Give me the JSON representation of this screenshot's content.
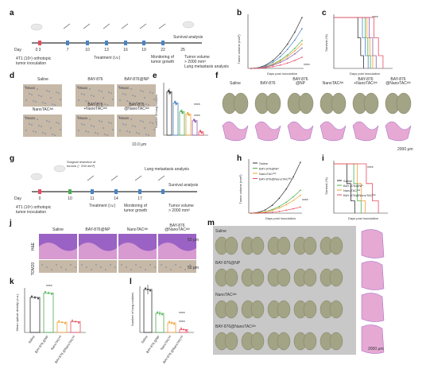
{
  "panels": {
    "a": {
      "label": "a",
      "day_label": "Day",
      "days": [
        "0",
        "3",
        "7",
        "10",
        "13",
        "16",
        "19",
        "22",
        "25"
      ],
      "inoculation": "4T1 (10⁵) orthotopic\ntumor inoculation",
      "treatment": "Treatment (i.v.)",
      "monitoring": "Monitoring of\ntumor growth",
      "survival": "Survival analysis",
      "tumor_volume": "Tumor volume\n> 2000 mm³",
      "metastasis": "Lung metastasis analysis"
    },
    "b": {
      "label": "b",
      "ylabel": "Tumor volume (mm³)",
      "xlabel": "Days post inoculation",
      "significance": "****"
    },
    "c": {
      "label": "c",
      "ylabel": "Survival (%)",
      "xlabel": "Days post inoculation",
      "significance": "****"
    },
    "d": {
      "label": "d",
      "titles": [
        "Saline",
        "BAY-876",
        "BAY-876@NP",
        "NanoTACᴬˡᵇ",
        "BAY-876\n+NanoTACᴬˡᵇ",
        "BAY-876\n@NanoTACᴬˡᵇ"
      ],
      "stain": "TOM20",
      "scale": "10.0 μm"
    },
    "e": {
      "label": "e",
      "ylabel": "Number of lung nodules",
      "significance": [
        "****",
        "****"
      ]
    },
    "f": {
      "label": "f",
      "titles": [
        "Saline",
        "BAY-876",
        "BAY-876\n@NP",
        "NanoTACᴬˡᵇ",
        "BAY-876\n+NanoTACᴬˡᵇ",
        "BAY-876\n@NanoTACᴬˡᵇ"
      ],
      "scale": "2000 μm"
    },
    "g": {
      "label": "g",
      "day_label": "Day",
      "days": [
        "0",
        "10",
        "11",
        "14",
        "17"
      ],
      "surgical": "Surgical resection of\ntumors (~ 200 mm³)",
      "inoculation": "4T1 (10⁵) orthotopic\ntumor inoculation",
      "treatment": "Treatment (i.v.)",
      "monitoring": "Monitoring of\ntumor growth",
      "survival": "Survival analysis",
      "tumor_volume": "Tumor volume\n> 2000 mm³",
      "metastasis": "Lung metastasis analysis"
    },
    "h": {
      "label": "h",
      "ylabel": "Tumor volume (mm³)",
      "xlabel": "Days post inoculation",
      "legend": [
        "Saline",
        "BAY-876@NP",
        "NanoTACᴬˡᵇ",
        "BAY-876@NanoTACᴬˡᵇ"
      ],
      "significance": "****"
    },
    "i": {
      "label": "i",
      "ylabel": "Survival (%)",
      "xlabel": "Days post inoculation",
      "significance": "****"
    },
    "j": {
      "label": "j",
      "titles": [
        "Saline",
        "BAY-876@NP",
        "NanoTACᴬˡᵇ",
        "BAY-876\n@NanoTACᴬˡᵇ"
      ],
      "rows": [
        "H&E",
        "TOM20"
      ],
      "scale": "50 μm"
    },
    "k": {
      "label": "k",
      "ylabel": "Mean optical density (a.u.)",
      "significance": "****",
      "categories": [
        "Saline",
        "BAY-876\n@NP",
        "NanoTACᴬˡᵇ",
        "BAY-876\n@NanoTACᴬˡᵇ"
      ]
    },
    "l": {
      "label": "l",
      "ylabel": "Number of lung nodules",
      "significance": [
        "****",
        "****"
      ],
      "categories": [
        "Saline",
        "BAY-876\n@NP",
        "NanoTACᴬˡᵇ",
        "BAY-876\n@NanoTACᴬˡᵇ"
      ]
    },
    "m": {
      "label": "m",
      "rows": [
        "Saline",
        "BAY-876@NP",
        "NanoTACᴬˡᵇ",
        "BAY-876@NanoTACᴬˡᵇ"
      ],
      "scale": "2000 μm"
    }
  },
  "colors": {
    "saline": "#333333",
    "bay876": "#4b84c4",
    "bay876np": "#4caf50",
    "nanotac": "#f0a030",
    "combo": "#8e5bb0",
    "baynanotac": "#e84a5f",
    "lung": "#a3a385",
    "lung_dark": "#7f7f64",
    "he_pink": "#e6a9d4",
    "he_purple": "#9a62c4",
    "ihc_bg": "#c7b9a8",
    "ihc_dark": "#7d8aa0"
  }
}
